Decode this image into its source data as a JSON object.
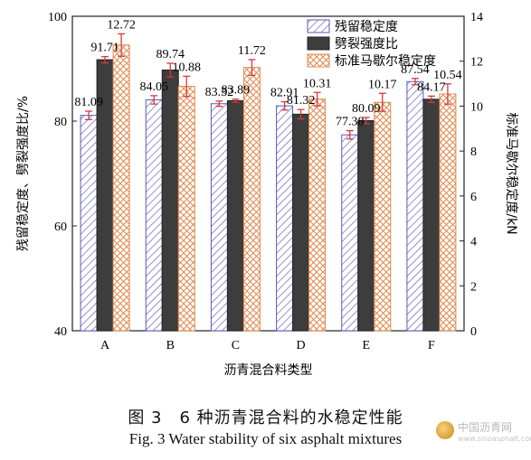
{
  "chart_data": {
    "type": "bar",
    "categories": [
      "A",
      "B",
      "C",
      "D",
      "E",
      "F"
    ],
    "xlabel": "沥青混合料类型",
    "ylabel_left": "残留稳定度、劈裂强度比/%",
    "ylabel_right": "标准马歇尔稳定度/kN",
    "ylim_left": [
      40,
      100
    ],
    "ylim_right": [
      0,
      14
    ],
    "yticks_left": [
      40,
      60,
      80,
      100
    ],
    "yticks_right": [
      0,
      2,
      4,
      6,
      8,
      10,
      12,
      14
    ],
    "grid": false,
    "legend_position": "top-right",
    "series": [
      {
        "name": "残留稳定度",
        "axis": "left",
        "values": [
          81.09,
          84.05,
          83.32,
          82.91,
          77.38,
          87.54
        ],
        "errors": [
          0.8,
          0.8,
          0.5,
          0.8,
          0.8,
          0.6
        ],
        "labels": [
          "81.09",
          "84.05",
          "83.32",
          "82.91",
          "77.38",
          "87.54"
        ],
        "color": "#5a58b8",
        "pattern": "diagonal-hatch"
      },
      {
        "name": "劈裂强度比",
        "axis": "left",
        "values": [
          91.71,
          89.74,
          83.89,
          81.32,
          80.09,
          84.17
        ],
        "errors": [
          0.6,
          1.3,
          0.3,
          0.9,
          0.6,
          0.6
        ],
        "labels": [
          "91.71",
          "89.74",
          "83.89",
          "81.32",
          "80.09",
          "84.17"
        ],
        "color": "#3d3d3d",
        "pattern": "solid"
      },
      {
        "name": "标准马歇尔稳定度",
        "axis": "right",
        "values": [
          12.72,
          10.88,
          11.72,
          10.31,
          10.17,
          10.54
        ],
        "errors": [
          0.5,
          0.45,
          0.35,
          0.3,
          0.4,
          0.45
        ],
        "labels": [
          "12.72",
          "10.88",
          "11.72",
          "10.31",
          "10.17",
          "10.54"
        ],
        "color": "#e0894e",
        "pattern": "crosshatch"
      }
    ]
  },
  "caption": {
    "cn": "图 3　6 种沥青混合料的水稳定性能",
    "en": "Fig. 3 Water stability of six asphalt mixtures"
  },
  "watermark": {
    "title": "中国沥青网",
    "url": "www.sinoasphalt.com"
  },
  "colors": {
    "error_bar": "#d63a3a"
  }
}
